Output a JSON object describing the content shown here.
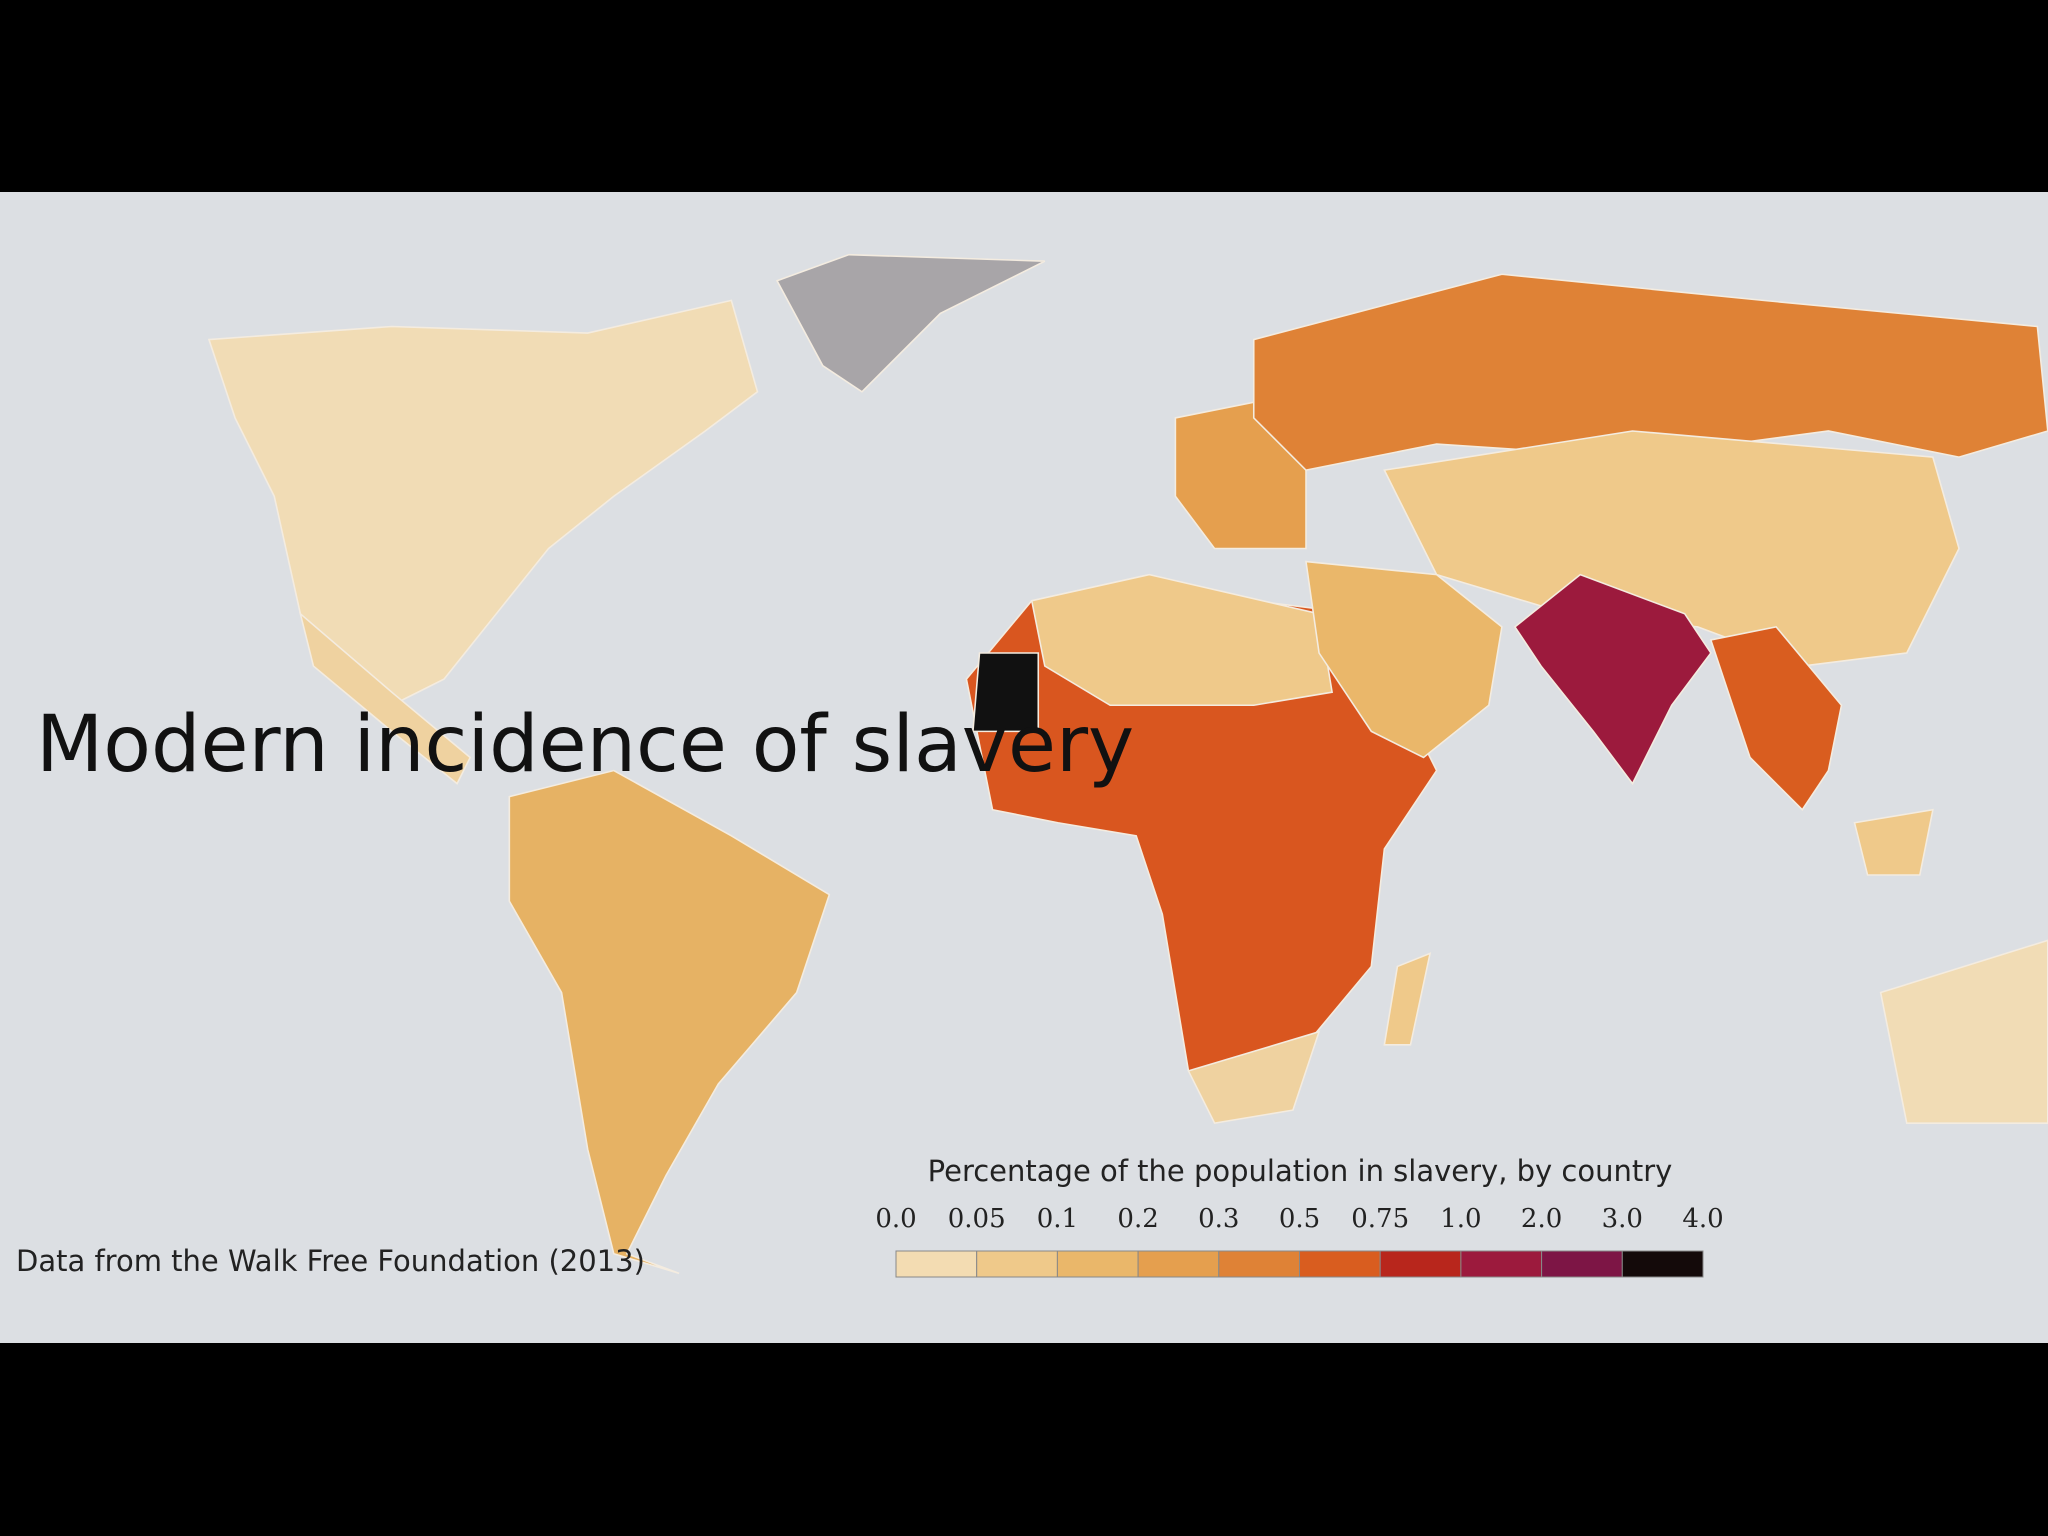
{
  "title": "Modern incidence of slavery",
  "source": "Data from the Walk Free Foundation (2013)",
  "legend": {
    "title": "Percentage of the population in slavery, by country",
    "ticks": [
      "0.0",
      "0.05",
      "0.1",
      "0.2",
      "0.3",
      "0.5",
      "0.75",
      "1.0",
      "2.0",
      "3.0",
      "4.0"
    ],
    "colors": [
      "#f3dcb2",
      "#efc98a",
      "#eab76a",
      "#e59f4e",
      "#df8236",
      "#d95d1f",
      "#b8261c",
      "#9c1a3d",
      "#7d1545",
      "#140a0a"
    ]
  }
}
